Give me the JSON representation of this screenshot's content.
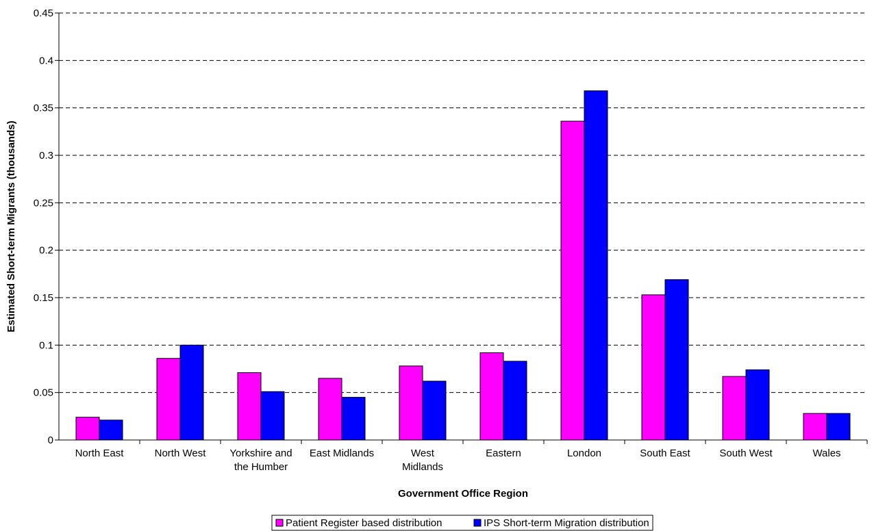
{
  "chart_data": {
    "type": "bar",
    "title": "",
    "xlabel": "Government Office Region",
    "ylabel": "Estimated Short-term Migrants (thousands)",
    "ylim": [
      0,
      0.45
    ],
    "yticks": [
      0,
      0.05,
      0.1,
      0.15,
      0.2,
      0.25,
      0.3,
      0.35,
      0.4,
      0.45
    ],
    "ytick_labels": [
      "0",
      "0.05",
      "0.1",
      "0.15",
      "0.2",
      "0.25",
      "0.3",
      "0.35",
      "0.4",
      "0.45"
    ],
    "grid": "horizontal dashed",
    "legend_position": "bottom-center",
    "categories": [
      [
        "North East"
      ],
      [
        "North West"
      ],
      [
        "Yorkshire and",
        "the Humber"
      ],
      [
        "East Midlands"
      ],
      [
        "West",
        "Midlands"
      ],
      [
        "Eastern"
      ],
      [
        "London"
      ],
      [
        "South East"
      ],
      [
        "South West"
      ],
      [
        "Wales"
      ]
    ],
    "series": [
      {
        "name": "Patient Register based distribution",
        "color": "#ff00ff",
        "values": [
          0.024,
          0.086,
          0.071,
          0.065,
          0.078,
          0.092,
          0.336,
          0.153,
          0.067,
          0.028
        ]
      },
      {
        "name": "IPS Short-term Migration distribution",
        "color": "#0000ff",
        "values": [
          0.021,
          0.1,
          0.051,
          0.045,
          0.062,
          0.083,
          0.368,
          0.169,
          0.074,
          0.028
        ]
      }
    ]
  }
}
